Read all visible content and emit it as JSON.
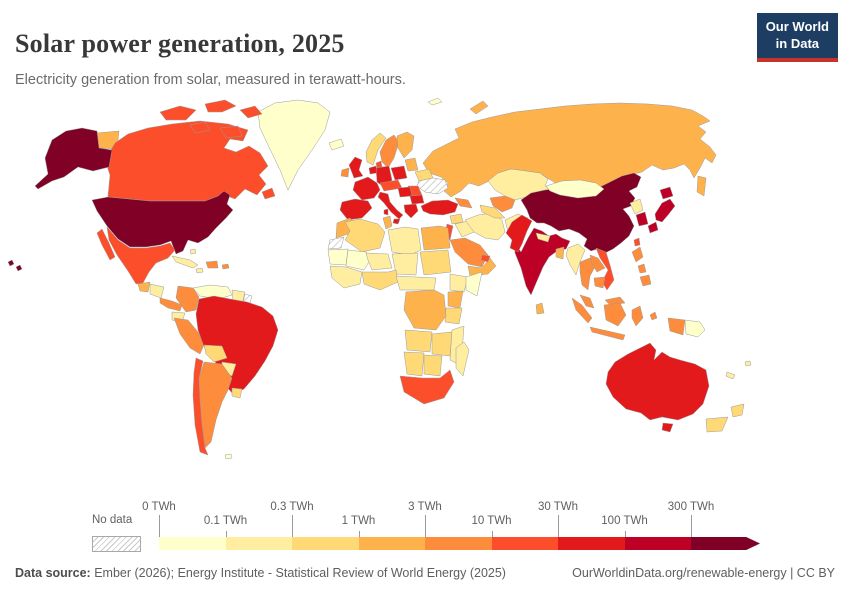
{
  "header": {
    "title": "Solar power generation, 2025",
    "subtitle": "Electricity generation from solar, measured in terawatt-hours.",
    "logo": {
      "line1": "Our World",
      "line2": "in Data",
      "bg": "#1d3d63",
      "accent": "#c5342b"
    }
  },
  "legend": {
    "no_data_label": "No data",
    "ticks": [
      "0 TWh",
      "0.1 TWh",
      "0.3 TWh",
      "1 TWh",
      "3 TWh",
      "10 TWh",
      "30 TWh",
      "100 TWh",
      "300 TWh"
    ],
    "bin_colors": [
      "#ffffcc",
      "#ffeda0",
      "#fed976",
      "#feb24c",
      "#fd8d3c",
      "#fc4e2a",
      "#e31a1c",
      "#bd0026",
      "#800026"
    ]
  },
  "footer": {
    "source_label": "Data source:",
    "source_text": " Ember (2026); Energy Institute - Statistical Review of World Energy (2025)",
    "credit_text": "OurWorldinData.org/renewable-energy | CC BY"
  },
  "chart_data": {
    "type": "choropleth",
    "title": "Solar power generation, 2025",
    "unit": "TWh",
    "scale": {
      "thresholds": [
        0,
        0.1,
        0.3,
        1,
        3,
        10,
        30,
        100,
        300
      ],
      "colors": [
        "#ffffcc",
        "#ffeda0",
        "#fed976",
        "#feb24c",
        "#fd8d3c",
        "#fc4e2a",
        "#e31a1c",
        "#bd0026",
        "#800026"
      ],
      "open_ended_top": "300+ TWh",
      "no_data": "hatched"
    },
    "countries": [
      {
        "id": "united-states",
        "name": "United States",
        "bin": "300+ TWh",
        "color": "#800026"
      },
      {
        "id": "china",
        "name": "China",
        "bin": "300+ TWh",
        "color": "#800026"
      },
      {
        "id": "india",
        "name": "India",
        "bin": "100-300 TWh",
        "color": "#bd0026"
      },
      {
        "id": "japan",
        "name": "Japan",
        "bin": "100-300 TWh",
        "color": "#bd0026"
      },
      {
        "id": "south-korea",
        "name": "South Korea",
        "bin": "100-300 TWh",
        "color": "#bd0026"
      },
      {
        "id": "brazil",
        "name": "Brazil",
        "bin": "30-100 TWh",
        "color": "#e31a1c"
      },
      {
        "id": "australia",
        "name": "Australia",
        "bin": "30-100 TWh",
        "color": "#e31a1c"
      },
      {
        "id": "germany",
        "name": "Germany",
        "bin": "30-100 TWh",
        "color": "#e31a1c"
      },
      {
        "id": "france",
        "name": "France",
        "bin": "30-100 TWh",
        "color": "#e31a1c"
      },
      {
        "id": "spain-portugal",
        "name": "Spain and Portugal",
        "bin": "30-100 TWh",
        "color": "#e31a1c"
      },
      {
        "id": "italy",
        "name": "Italy",
        "bin": "30-100 TWh",
        "color": "#e31a1c"
      },
      {
        "id": "united-kingdom",
        "name": "United Kingdom",
        "bin": "30-100 TWh",
        "color": "#e31a1c"
      },
      {
        "id": "poland",
        "name": "Poland",
        "bin": "30-100 TWh",
        "color": "#e31a1c"
      },
      {
        "id": "low-countries",
        "name": "Netherlands and Belgium",
        "bin": "30-100 TWh",
        "color": "#e31a1c"
      },
      {
        "id": "turkey",
        "name": "Turkey",
        "bin": "30-100 TWh",
        "color": "#e31a1c"
      },
      {
        "id": "greece",
        "name": "Greece",
        "bin": "30-100 TWh",
        "color": "#e31a1c"
      },
      {
        "id": "hungary-serbia",
        "name": "Hungary and Serbia",
        "bin": "30-100 TWh",
        "color": "#e31a1c"
      },
      {
        "id": "bulgaria",
        "name": "Bulgaria",
        "bin": "30-100 TWh",
        "color": "#e31a1c"
      },
      {
        "id": "pakistan",
        "name": "Pakistan",
        "bin": "30-100 TWh",
        "color": "#e31a1c"
      },
      {
        "id": "canada",
        "name": "Canada",
        "bin": "10-30 TWh",
        "color": "#fc4e2a"
      },
      {
        "id": "mexico",
        "name": "Mexico",
        "bin": "10-30 TWh",
        "color": "#fc4e2a"
      },
      {
        "id": "chile",
        "name": "Chile",
        "bin": "10-30 TWh",
        "color": "#fc4e2a"
      },
      {
        "id": "south-africa",
        "name": "South Africa",
        "bin": "10-30 TWh",
        "color": "#fc4e2a"
      },
      {
        "id": "vietnam",
        "name": "Vietnam",
        "bin": "10-30 TWh",
        "color": "#fc4e2a"
      },
      {
        "id": "taiwan",
        "name": "Taiwan",
        "bin": "10-30 TWh",
        "color": "#fc4e2a"
      },
      {
        "id": "israel-jordan",
        "name": "Israel and Jordan",
        "bin": "10-30 TWh",
        "color": "#fc4e2a"
      },
      {
        "id": "uae-qatar",
        "name": "United Arab Emirates",
        "bin": "10-30 TWh",
        "color": "#fc4e2a"
      },
      {
        "id": "denmark",
        "name": "Denmark",
        "bin": "10-30 TWh",
        "color": "#fc4e2a"
      },
      {
        "id": "austria-czechia",
        "name": "Austria and Czechia",
        "bin": "10-30 TWh",
        "color": "#fc4e2a"
      },
      {
        "id": "romania",
        "name": "Romania",
        "bin": "10-30 TWh",
        "color": "#fc4e2a"
      },
      {
        "id": "russia",
        "name": "Russia",
        "bin": "1-3 TWh",
        "color": "#feb24c"
      },
      {
        "id": "argentina",
        "name": "Argentina",
        "bin": "3-10 TWh",
        "color": "#fd8d3c"
      },
      {
        "id": "colombia",
        "name": "Colombia",
        "bin": "3-10 TWh",
        "color": "#fd8d3c"
      },
      {
        "id": "peru",
        "name": "Peru",
        "bin": "3-10 TWh",
        "color": "#fd8d3c"
      },
      {
        "id": "thailand",
        "name": "Thailand",
        "bin": "3-10 TWh",
        "color": "#fd8d3c"
      },
      {
        "id": "laos",
        "name": "Laos",
        "bin": "3-10 TWh",
        "color": "#fd8d3c"
      },
      {
        "id": "cambodia",
        "name": "Cambodia",
        "bin": "3-10 TWh",
        "color": "#fd8d3c"
      },
      {
        "id": "malaysia",
        "name": "Malaysia",
        "bin": "3-10 TWh",
        "color": "#fd8d3c"
      },
      {
        "id": "indonesia",
        "name": "Indonesia",
        "bin": "3-10 TWh",
        "color": "#fd8d3c"
      },
      {
        "id": "philippines",
        "name": "Philippines",
        "bin": "3-10 TWh",
        "color": "#fd8d3c"
      },
      {
        "id": "saudi-arabia",
        "name": "Saudi Arabia",
        "bin": "3-10 TWh",
        "color": "#fd8d3c"
      },
      {
        "id": "uzbekistan",
        "name": "Uzbekistan",
        "bin": "3-10 TWh",
        "color": "#fd8d3c"
      },
      {
        "id": "caucasus",
        "name": "Caucasus",
        "bin": "3-10 TWh",
        "color": "#fd8d3c"
      },
      {
        "id": "sweden",
        "name": "Sweden",
        "bin": "3-10 TWh",
        "color": "#fd8d3c"
      },
      {
        "id": "ireland",
        "name": "Ireland",
        "bin": "3-10 TWh",
        "color": "#fd8d3c"
      },
      {
        "id": "hispaniola",
        "name": "Dominican Republic",
        "bin": "3-10 TWh",
        "color": "#fd8d3c"
      },
      {
        "id": "puerto-rico",
        "name": "Puerto Rico",
        "bin": "3-10 TWh",
        "color": "#fd8d3c"
      },
      {
        "id": "costa-rica-panama",
        "name": "Costa Rica and Panama",
        "bin": "3-10 TWh",
        "color": "#fd8d3c"
      },
      {
        "id": "egypt",
        "name": "Egypt",
        "bin": "1-3 TWh",
        "color": "#feb24c"
      },
      {
        "id": "morocco",
        "name": "Morocco",
        "bin": "1-3 TWh",
        "color": "#feb24c"
      },
      {
        "id": "tunisia",
        "name": "Tunisia",
        "bin": "1-3 TWh",
        "color": "#feb24c"
      },
      {
        "id": "finland",
        "name": "Finland",
        "bin": "1-3 TWh",
        "color": "#feb24c"
      },
      {
        "id": "baltics",
        "name": "Baltic states",
        "bin": "1-3 TWh",
        "color": "#feb24c"
      },
      {
        "id": "drc",
        "name": "Democratic Republic of Congo",
        "bin": "1-3 TWh",
        "color": "#feb24c"
      },
      {
        "id": "kenya",
        "name": "Kenya",
        "bin": "1-3 TWh",
        "color": "#feb24c"
      },
      {
        "id": "sri-lanka",
        "name": "Sri Lanka",
        "bin": "1-3 TWh",
        "color": "#feb24c"
      },
      {
        "id": "bangladesh",
        "name": "Bangladesh",
        "bin": "1-3 TWh",
        "color": "#feb24c"
      },
      {
        "id": "guatemala",
        "name": "Guatemala",
        "bin": "1-3 TWh",
        "color": "#feb24c"
      },
      {
        "id": "yemen-oman",
        "name": "Yemen and Oman",
        "bin": "1-3 TWh",
        "color": "#feb24c"
      },
      {
        "id": "norway",
        "name": "Norway",
        "bin": "0.3-1 TWh",
        "color": "#fed976"
      },
      {
        "id": "algeria",
        "name": "Algeria",
        "bin": "0.3-1 TWh",
        "color": "#fed976"
      },
      {
        "id": "sudan",
        "name": "Sudan",
        "bin": "0.3-1 TWh",
        "color": "#fed976"
      },
      {
        "id": "bolivia",
        "name": "Bolivia",
        "bin": "0.3-1 TWh",
        "color": "#fed976"
      },
      {
        "id": "uruguay",
        "name": "Uruguay",
        "bin": "0.3-1 TWh",
        "color": "#fed976"
      },
      {
        "id": "angola",
        "name": "Angola",
        "bin": "0.3-1 TWh",
        "color": "#fed976"
      },
      {
        "id": "namibia",
        "name": "Namibia",
        "bin": "0.3-1 TWh",
        "color": "#fed976"
      },
      {
        "id": "botswana",
        "name": "Botswana",
        "bin": "0.3-1 TWh",
        "color": "#fed976"
      },
      {
        "id": "tanzania",
        "name": "Tanzania",
        "bin": "0.3-1 TWh",
        "color": "#fed976"
      },
      {
        "id": "zambia-zimbabwe",
        "name": "Zambia and Zimbabwe",
        "bin": "0.3-1 TWh",
        "color": "#fed976"
      },
      {
        "id": "new-zealand",
        "name": "New Zealand",
        "bin": "0.3-1 TWh",
        "color": "#fed976"
      },
      {
        "id": "syria",
        "name": "Syria",
        "bin": "0.3-1 TWh",
        "color": "#fed976"
      },
      {
        "id": "belarus",
        "name": "Belarus",
        "bin": "0.3-1 TWh",
        "color": "#fed976"
      },
      {
        "id": "turkmenistan",
        "name": "Turkmenistan",
        "bin": "0.3-1 TWh",
        "color": "#fed976"
      },
      {
        "id": "ghana-nigeria",
        "name": "Ghana and Nigeria",
        "bin": "0.3-1 TWh",
        "color": "#fed976"
      },
      {
        "id": "libya",
        "name": "Libya",
        "bin": "0.1-0.3 TWh",
        "color": "#ffeda0"
      },
      {
        "id": "iran",
        "name": "Iran",
        "bin": "0.1-0.3 TWh",
        "color": "#ffeda0"
      },
      {
        "id": "iraq",
        "name": "Iraq",
        "bin": "0.1-0.3 TWh",
        "color": "#ffeda0"
      },
      {
        "id": "afghanistan",
        "name": "Afghanistan",
        "bin": "0.1-0.3 TWh",
        "color": "#ffeda0"
      },
      {
        "id": "kazakhstan",
        "name": "Kazakhstan",
        "bin": "0.1-0.3 TWh",
        "color": "#ffeda0"
      },
      {
        "id": "myanmar",
        "name": "Myanmar",
        "bin": "0.1-0.3 TWh",
        "color": "#ffeda0"
      },
      {
        "id": "north-korea",
        "name": "North Korea",
        "bin": "0.1-0.3 TWh",
        "color": "#ffeda0"
      },
      {
        "id": "nepal",
        "name": "Nepal",
        "bin": "0.1-0.3 TWh",
        "color": "#ffeda0"
      },
      {
        "id": "ethiopia",
        "name": "Ethiopia",
        "bin": "0.1-0.3 TWh",
        "color": "#ffeda0"
      },
      {
        "id": "madagascar",
        "name": "Madagascar",
        "bin": "0.1-0.3 TWh",
        "color": "#ffeda0"
      },
      {
        "id": "niger",
        "name": "Niger",
        "bin": "0.1-0.3 TWh",
        "color": "#ffeda0"
      },
      {
        "id": "chad",
        "name": "Chad",
        "bin": "0.1-0.3 TWh",
        "color": "#ffeda0"
      },
      {
        "id": "cameroon-car",
        "name": "Cameroon and Central Africa",
        "bin": "0.1-0.3 TWh",
        "color": "#ffeda0"
      },
      {
        "id": "mozambique",
        "name": "Mozambique",
        "bin": "0.1-0.3 TWh",
        "color": "#ffeda0"
      },
      {
        "id": "paraguay",
        "name": "Paraguay",
        "bin": "0.1-0.3 TWh",
        "color": "#ffeda0"
      },
      {
        "id": "ecuador",
        "name": "Ecuador",
        "bin": "0.1-0.3 TWh",
        "color": "#ffeda0"
      },
      {
        "id": "honduras-nicaragua",
        "name": "Honduras and Nicaragua",
        "bin": "0.1-0.3 TWh",
        "color": "#ffeda0"
      },
      {
        "id": "cuba",
        "name": "Cuba",
        "bin": "0.1-0.3 TWh",
        "color": "#ffeda0"
      },
      {
        "id": "jamaica",
        "name": "Jamaica",
        "bin": "0.1-0.3 TWh",
        "color": "#ffeda0"
      },
      {
        "id": "bahamas",
        "name": "Bahamas",
        "bin": "0.1-0.3 TWh",
        "color": "#ffeda0"
      },
      {
        "id": "guyanas",
        "name": "Guyana and Suriname",
        "bin": "0.1-0.3 TWh",
        "color": "#ffeda0"
      },
      {
        "id": "west-africa",
        "name": "West Africa",
        "bin": "0.1-0.3 TWh",
        "color": "#ffeda0"
      },
      {
        "id": "pacific-islands",
        "name": "Pacific islands",
        "bin": "0.1-0.3 TWh",
        "color": "#ffeda0"
      },
      {
        "id": "mongolia",
        "name": "Mongolia",
        "bin": "0-0.1 TWh",
        "color": "#ffffcc"
      },
      {
        "id": "greenland",
        "name": "Greenland",
        "bin": "0-0.1 TWh",
        "color": "#ffffcc"
      },
      {
        "id": "venezuela",
        "name": "Venezuela",
        "bin": "0-0.1 TWh",
        "color": "#ffffcc"
      },
      {
        "id": "iceland",
        "name": "Iceland",
        "bin": "0-0.1 TWh",
        "color": "#ffffcc"
      },
      {
        "id": "mauritania",
        "name": "Mauritania",
        "bin": "0-0.1 TWh",
        "color": "#ffffcc"
      },
      {
        "id": "mali",
        "name": "Mali",
        "bin": "0-0.1 TWh",
        "color": "#ffffcc"
      },
      {
        "id": "somalia",
        "name": "Somalia",
        "bin": "0-0.1 TWh",
        "color": "#ffffcc"
      },
      {
        "id": "papua-new-guinea",
        "name": "Papua New Guinea",
        "bin": "0-0.1 TWh",
        "color": "#ffffcc"
      },
      {
        "id": "svalbard",
        "name": "Svalbard",
        "bin": "0-0.1 TWh",
        "color": "#ffffcc"
      },
      {
        "id": "falklands",
        "name": "Falkland Islands",
        "bin": "0-0.1 TWh",
        "color": "#ffffcc"
      },
      {
        "id": "ukraine",
        "name": "Ukraine",
        "bin": "No data",
        "color": "no-data"
      },
      {
        "id": "western-sahara",
        "name": "Western Sahara",
        "bin": "No data",
        "color": "no-data"
      },
      {
        "id": "french-guiana",
        "name": "French Guiana",
        "bin": "No data",
        "color": "no-data"
      }
    ]
  }
}
